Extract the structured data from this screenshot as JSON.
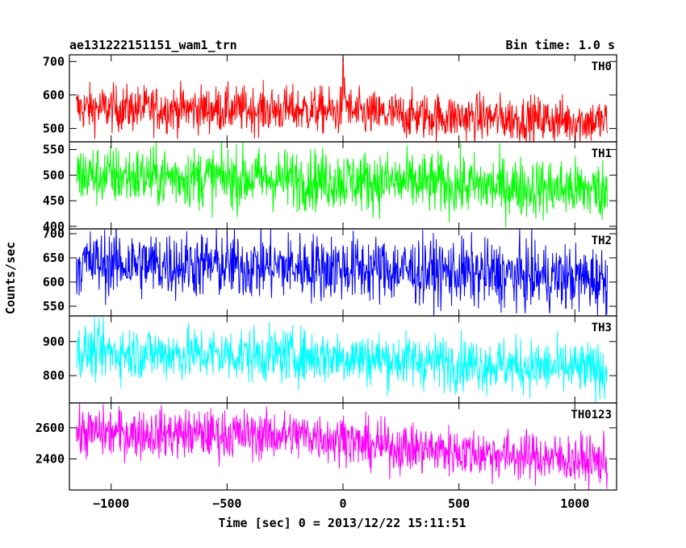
{
  "chart_data": {
    "type": "line",
    "title": "ae131222151151_wam1_trn",
    "bin_time_label": "Bin time: 1.0 s",
    "xlabel": "Time [sec] 0 = 2013/12/22 15:11:51",
    "ylabel": "Counts/sec",
    "xlim": [
      -1180,
      1180
    ],
    "x_ticks": [
      -1000,
      -500,
      0,
      500,
      1000
    ],
    "x_tick_labels": [
      "−1000",
      "−500",
      "0",
      "500",
      "1000"
    ],
    "x_range": [
      -1150,
      1140
    ],
    "panels": [
      {
        "name": "TH0",
        "color": "#ff0000",
        "ylim": [
          460,
          720
        ],
        "y_ticks": [
          500,
          600,
          700
        ],
        "y_tick_labels": [
          "500",
          "600",
          "700"
        ],
        "baseline": [
          [
            -1150,
            560
          ],
          [
            -100,
            555
          ],
          [
            0,
            545
          ],
          [
            1140,
            520
          ]
        ],
        "noise": 35,
        "peak": {
          "x": 0,
          "height": 120,
          "width": 12
        }
      },
      {
        "name": "TH1",
        "color": "#00ff00",
        "ylim": [
          395,
          565
        ],
        "y_ticks": [
          400,
          450,
          500,
          550
        ],
        "y_tick_labels": [
          "400",
          "450",
          "500",
          "550"
        ],
        "baseline": [
          [
            -1150,
            500
          ],
          [
            0,
            490
          ],
          [
            1140,
            470
          ]
        ],
        "noise": 30
      },
      {
        "name": "TH2",
        "color": "#0000ff",
        "ylim": [
          530,
          710
        ],
        "y_ticks": [
          550,
          600,
          650,
          700
        ],
        "y_tick_labels": [
          "550",
          "600",
          "650",
          "700"
        ],
        "baseline": [
          [
            -1150,
            640
          ],
          [
            0,
            630
          ],
          [
            1140,
            605
          ]
        ],
        "noise": 35
      },
      {
        "name": "TH3",
        "color": "#00ffff",
        "ylim": [
          720,
          975
        ],
        "y_ticks": [
          800,
          900
        ],
        "y_tick_labels": [
          "800",
          "900"
        ],
        "baseline": [
          [
            -1150,
            870
          ],
          [
            0,
            855
          ],
          [
            1140,
            815
          ]
        ],
        "noise": 40
      },
      {
        "name": "TH0123",
        "color": "#ff00ff",
        "ylim": [
          2200,
          2760
        ],
        "y_ticks": [
          2400,
          2600
        ],
        "y_tick_labels": [
          "2400",
          "2600"
        ],
        "baseline": [
          [
            -1150,
            2570
          ],
          [
            -100,
            2550
          ],
          [
            0,
            2500
          ],
          [
            1140,
            2380
          ]
        ],
        "noise": 80,
        "peak": {
          "x": 0,
          "height": 140,
          "width": 14
        }
      }
    ]
  }
}
